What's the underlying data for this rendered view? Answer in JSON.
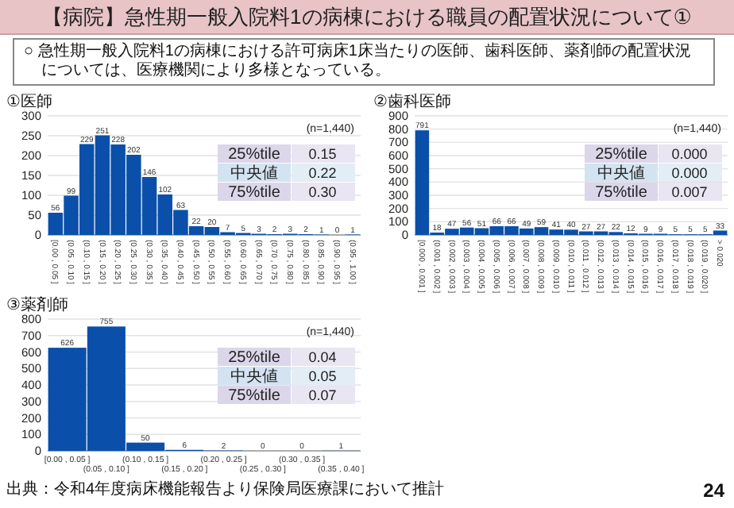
{
  "chart_data": [
    {
      "type": "other",
      "title": "【病院】急性期一般入院料1の病棟における職員の配置状況について①",
      "subtitle": "○ 急性期一般入院料1の病棟における許可病床1床当たりの医師、歯科医師、薬剤師の配置状況については、医療機関により多様となっている。",
      "annotations": [
        "出典：令和4年度病床機能報告より保険局医療課において推計",
        "24"
      ]
    },
    {
      "type": "bar",
      "title": "①医師",
      "categories": [
        "[0.00 , 0.05 ]",
        "(0.05 , 0.10 ]",
        "(0.10 , 0.15 ]",
        "(0.15 , 0.20 ]",
        "(0.20 , 0.25 ]",
        "(0.25 , 0.30 ]",
        "(0.30 , 0.35 ]",
        "(0.35 , 0.40 ]",
        "(0.40 , 0.45 ]",
        "(0.45 , 0.50 ]",
        "(0.50 , 0.55 ]",
        "(0.55 , 0.60 ]",
        "(0.60 , 0.65 ]",
        "(0.65 , 0.70 ]",
        "(0.70 , 0.75 ]",
        "(0.75 , 0.80 ]",
        "(0.80 , 0.85 ]",
        "(0.85 , 0.90 ]",
        "(0.90 , 0.95 ]",
        "(0.95 , 1.00 ]"
      ],
      "values": [
        56,
        99,
        229,
        251,
        228,
        202,
        146,
        102,
        63,
        22,
        20,
        7,
        5,
        3,
        2,
        3,
        2,
        1,
        0,
        1
      ],
      "color": "#0a50aa",
      "ylim": [
        0,
        300
      ],
      "yticks": [
        0,
        50,
        100,
        150,
        200,
        250,
        300
      ],
      "grid": "y",
      "data_labels": true,
      "annotations": [
        "(n=1,440)",
        "25%tile",
        "0.15",
        "中央値",
        "0.22",
        "75%tile",
        "0.30"
      ]
    },
    {
      "type": "bar",
      "title": "②歯科医師",
      "categories": [
        "[0.000 , 0.001 ]",
        "(0.001 , 0.002 ]",
        "(0.002 , 0.003 ]",
        "(0.003 , 0.004 ]",
        "(0.004 , 0.005 ]",
        "(0.005 , 0.006 ]",
        "(0.006 , 0.007 ]",
        "(0.007 , 0.008 ]",
        "(0.008 , 0.009 ]",
        "(0.009 , 0.010 ]",
        "(0.010 , 0.011 ]",
        "(0.011 , 0.012 ]",
        "(0.012 , 0.013 ]",
        "(0.013 , 0.014 ]",
        "(0.014 , 0.015 ]",
        "(0.015 , 0.016 ]",
        "(0.016 , 0.017 ]",
        "(0.017 , 0.018 ]",
        "(0.018 , 0.019 ]",
        "(0.019 , 0.020 ]",
        "> 0.020"
      ],
      "values": [
        791,
        18,
        47,
        56,
        51,
        66,
        66,
        49,
        59,
        41,
        40,
        27,
        27,
        22,
        12,
        9,
        9,
        5,
        5,
        5,
        33
      ],
      "color": "#0a50aa",
      "ylim": [
        0,
        900
      ],
      "yticks": [
        0,
        100,
        200,
        300,
        400,
        500,
        600,
        700,
        800,
        900
      ],
      "grid": "y",
      "data_labels": true,
      "annotations": [
        "(n=1,440)",
        "25%tile",
        "0.000",
        "中央値",
        "0.000",
        "75%tile",
        "0.007"
      ]
    },
    {
      "type": "bar",
      "title": "③薬剤師",
      "categories": [
        "[0.00 , 0.05 ]",
        "(0.05 , 0.10 ]",
        "(0.10 , 0.15 ]",
        "(0.15 , 0.20 ]",
        "(0.20 , 0.25 ]",
        "(0.25 , 0.30 ]",
        "(0.30 , 0.35 ]",
        "(0.35 , 0.40 ]"
      ],
      "values": [
        626,
        755,
        50,
        6,
        2,
        0,
        0,
        1
      ],
      "color": "#0a50aa",
      "ylim": [
        0,
        800
      ],
      "yticks": [
        0,
        100,
        200,
        300,
        400,
        500,
        600,
        700,
        800
      ],
      "grid": "y",
      "data_labels": true,
      "annotations": [
        "(n=1,440)",
        "25%tile",
        "0.04",
        "中央値",
        "0.05",
        "75%tile",
        "0.07"
      ]
    }
  ]
}
